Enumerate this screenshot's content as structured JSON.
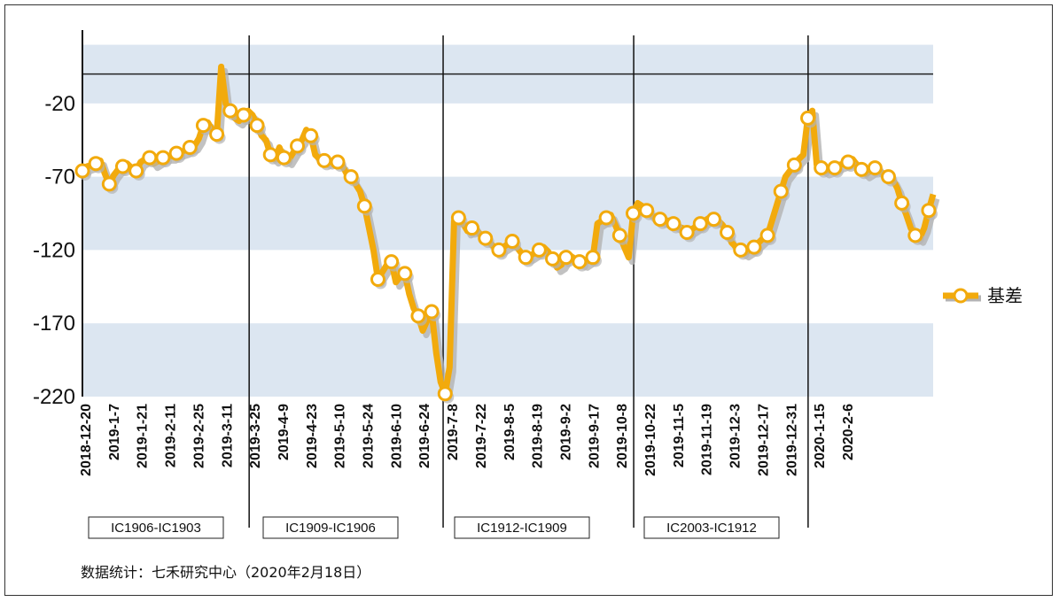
{
  "chart_data": {
    "type": "line",
    "colors": {
      "series": "#F2AA0C",
      "shadow": "#B3B3B3",
      "band": "#DCE6F1",
      "marker_fill": "#FFFFFF"
    },
    "ylim": [
      -220,
      30
    ],
    "y_ticks": [
      -20,
      -70,
      -120,
      -170,
      -220
    ],
    "bands": [
      [
        -20,
        20
      ],
      [
        -120,
        -70
      ],
      [
        -220,
        -170
      ]
    ],
    "reference_line_y": 0,
    "x_tick_labels": [
      "2018-12-20",
      "2019-1-7",
      "2019-1-21",
      "2019-2-11",
      "2019-2-25",
      "2019-3-11",
      "2019-3-25",
      "2019-4-9",
      "2019-4-23",
      "2019-5-10",
      "2019-5-24",
      "2019-6-10",
      "2019-6-24",
      "2019-7-8",
      "2019-7-22",
      "2019-8-5",
      "2019-8-19",
      "2019-9-2",
      "2019-9-17",
      "2019-10-8",
      "2019-10-22",
      "2019-11-5",
      "2019-11-19",
      "2019-12-3",
      "2019-12-17",
      "2019-12-31",
      "2020-1-15",
      "2020-2-6"
    ],
    "series": [
      {
        "name": "基差",
        "values": [
          -66,
          -63,
          -62,
          -61,
          -59,
          -68,
          -75,
          -69,
          -65,
          -63,
          -61,
          -64,
          -66,
          -60,
          -58,
          -57,
          -61,
          -59,
          -57,
          -56,
          -56,
          -54,
          -53,
          -52,
          -50,
          -49,
          -44,
          -35,
          -33,
          -38,
          -41,
          5,
          -20,
          -25,
          -30,
          -32,
          -28,
          -25,
          -28,
          -35,
          -42,
          -45,
          -55,
          -58,
          -50,
          -57,
          -59,
          -54,
          -49,
          -45,
          -38,
          -42,
          -55,
          -58,
          -59,
          -60,
          -59,
          -60,
          -62,
          -68,
          -70,
          -75,
          -80,
          -90,
          -105,
          -120,
          -140,
          -135,
          -130,
          -128,
          -142,
          -138,
          -136,
          -150,
          -160,
          -165,
          -175,
          -168,
          -162,
          -190,
          -210,
          -218,
          -200,
          -100,
          -98,
          -102,
          -107,
          -105,
          -106,
          -110,
          -112,
          -115,
          -118,
          -120,
          -118,
          -116,
          -114,
          -118,
          -122,
          -125,
          -124,
          -122,
          -120,
          -118,
          -121,
          -126,
          -132,
          -130,
          -125,
          -124,
          -126,
          -128,
          -129,
          -127,
          -125,
          -102,
          -100,
          -98,
          -96,
          -103,
          -110,
          -118,
          -125,
          -95,
          -88,
          -90,
          -93,
          -96,
          -98,
          -99,
          -100,
          -100,
          -102,
          -104,
          -105,
          -108,
          -106,
          -104,
          -102,
          -100,
          -98,
          -99,
          -100,
          -103,
          -108,
          -115,
          -118,
          -120,
          -122,
          -120,
          -118,
          -115,
          -112,
          -110,
          -100,
          -90,
          -80,
          -70,
          -66,
          -62,
          -58,
          -55,
          -30,
          -25,
          -62,
          -64,
          -66,
          -65,
          -64,
          -62,
          -61,
          -60,
          -58,
          -62,
          -65,
          -68,
          -66,
          -64,
          -66,
          -68,
          -70,
          -72,
          -78,
          -88,
          -96,
          -105,
          -110,
          -112,
          -105,
          -93,
          -82
        ],
        "marker_every": 3
      }
    ],
    "periods": [
      "IC1906-IC1903",
      "IC1909-IC1906",
      "IC1912-IC1909",
      "IC2003-IC1912"
    ],
    "legend": {
      "label": "基差",
      "position": "right"
    },
    "source": "数据统计：七禾研究中心（2020年2月18日）"
  }
}
